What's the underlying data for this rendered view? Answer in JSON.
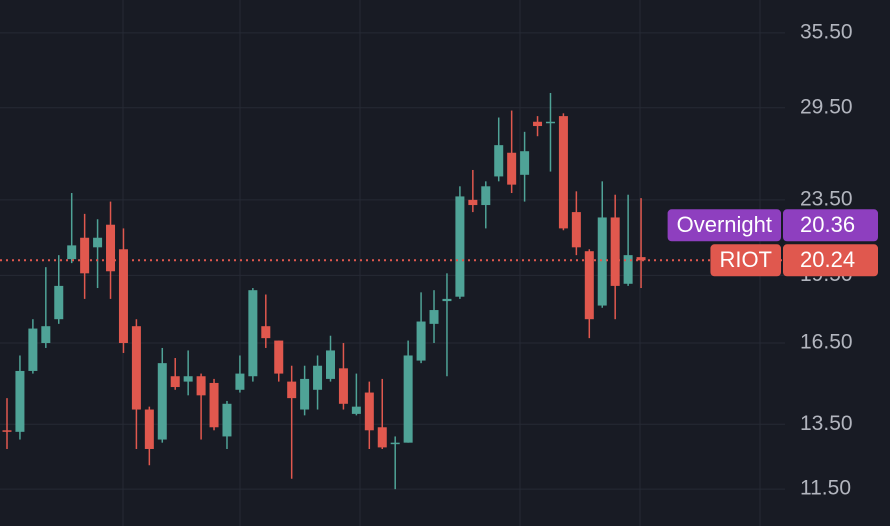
{
  "chart_data": {
    "type": "candlestick",
    "log_scale": true,
    "grid": true,
    "up_color": "#4fa397",
    "down_color": "#e0584e",
    "ylim": [
      10.5,
      38.5
    ],
    "yticks": [
      {
        "value": 11.5,
        "label": "11.50"
      },
      {
        "value": 13.5,
        "label": "13.50"
      },
      {
        "value": 16.5,
        "label": "16.50"
      },
      {
        "value": 19.5,
        "label": "19.50"
      },
      {
        "value": 23.5,
        "label": "23.50"
      },
      {
        "value": 29.5,
        "label": "29.50"
      },
      {
        "value": 35.5,
        "label": "35.50"
      }
    ],
    "open": [
      13.3,
      13.25,
      15.4,
      16.5,
      17.5,
      20.3,
      21.4,
      20.9,
      22.1,
      20.8,
      17.2,
      14.0,
      13.0,
      15.2,
      15.0,
      15.2,
      14.95,
      13.1,
      14.7,
      15.2,
      17.2,
      16.6,
      15.0,
      14.0,
      14.7,
      15.1,
      15.5,
      13.85,
      14.6,
      13.4,
      12.9,
      12.9,
      15.8,
      17.3,
      18.3,
      18.5,
      23.5,
      23.2,
      24.9,
      26.4,
      25.0,
      28.5,
      28.5,
      28.9,
      22.8,
      20.7,
      18.1,
      22.5,
      19.1,
      20.4
    ],
    "high": [
      14.4,
      16.0,
      17.5,
      19.9,
      20.5,
      23.9,
      22.7,
      22.4,
      23.4,
      21.9,
      17.5,
      14.1,
      16.3,
      15.9,
      16.2,
      15.3,
      15.1,
      14.3,
      16.0,
      18.9,
      18.6,
      16.6,
      15.6,
      15.6,
      16.0,
      16.8,
      16.5,
      15.3,
      15.0,
      15.1,
      13.1,
      16.6,
      18.7,
      18.8,
      19.6,
      24.3,
      25.3,
      24.6,
      28.8,
      29.3,
      27.8,
      28.9,
      30.6,
      29.1,
      24.0,
      20.8,
      24.6,
      23.8,
      23.8,
      23.6
    ],
    "low": [
      12.7,
      13.0,
      15.3,
      16.3,
      17.3,
      20.1,
      18.4,
      18.9,
      18.4,
      16.1,
      12.7,
      12.2,
      12.9,
      14.7,
      14.5,
      13.0,
      13.3,
      12.7,
      14.6,
      15.0,
      16.3,
      15.0,
      11.8,
      13.8,
      14.0,
      15.0,
      14.0,
      13.8,
      12.7,
      12.7,
      11.5,
      12.9,
      15.7,
      16.5,
      15.2,
      18.4,
      22.8,
      21.9,
      24.6,
      23.9,
      23.4,
      27.5,
      25.2,
      21.8,
      20.5,
      16.7,
      18.0,
      17.5,
      19.0,
      18.9
    ],
    "close": [
      13.25,
      15.4,
      17.1,
      17.2,
      19.0,
      21.0,
      19.6,
      21.4,
      19.7,
      16.5,
      14.0,
      12.7,
      15.7,
      14.8,
      15.2,
      14.5,
      13.4,
      14.2,
      15.3,
      18.8,
      16.7,
      15.3,
      14.4,
      15.1,
      15.6,
      16.2,
      14.2,
      14.1,
      13.3,
      12.75,
      12.9,
      16.0,
      17.4,
      17.9,
      18.4,
      23.7,
      23.2,
      24.3,
      26.9,
      24.4,
      26.5,
      28.2,
      28.5,
      21.9,
      20.9,
      17.5,
      22.5,
      19.0,
      20.5,
      20.24
    ],
    "price_labels": [
      {
        "name": "Overnight",
        "value": 20.36,
        "color": "#8e3fbf"
      },
      {
        "name": "RIOT",
        "value": 20.24,
        "color": "#e0584e"
      }
    ]
  }
}
